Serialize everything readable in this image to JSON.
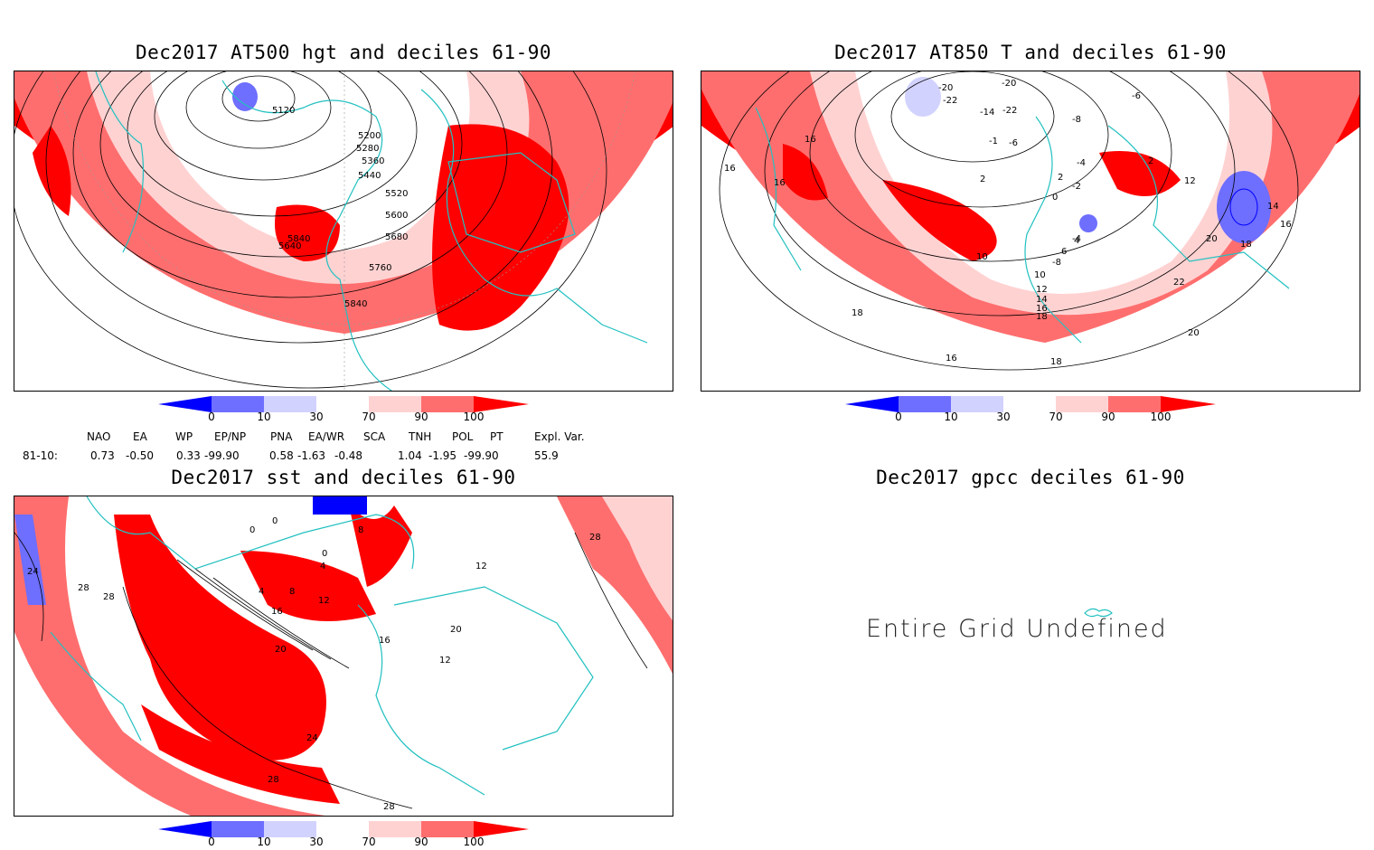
{
  "panels": {
    "hgt": {
      "title": "Dec2017 AT500 hgt and deciles 61-90",
      "contour_labels": [
        "5120",
        "5200",
        "5280",
        "5360",
        "5440",
        "5520",
        "5600",
        "5680",
        "5760",
        "5840",
        "5840",
        "5640"
      ]
    },
    "t850": {
      "title": "Dec2017 AT850 T and deciles 61-90",
      "contour_labels": [
        "-20",
        "-22",
        "-20",
        "-6",
        "-14",
        "-22",
        "-8",
        "-1",
        "-6",
        "2",
        "-4",
        "2",
        "16",
        "16",
        "16",
        "2",
        "0",
        "-2",
        "12",
        "14",
        "16",
        "-4",
        "4",
        "6",
        "-8",
        "10",
        "10",
        "12",
        "14",
        "16",
        "18",
        "20",
        "18",
        "22",
        "20",
        "18",
        "16",
        "18"
      ]
    },
    "sst": {
      "title": "Dec2017 sst and deciles 61-90",
      "contour_labels": [
        "0",
        "0",
        "0",
        "4",
        "4",
        "8",
        "12",
        "16",
        "20",
        "24",
        "28",
        "28",
        "24",
        "28",
        "28",
        "16",
        "20",
        "8",
        "12",
        "28",
        "12"
      ]
    },
    "gpcc": {
      "title": "Dec2017 gpcc deciles 61-90",
      "message": "Entire Grid Undefined"
    }
  },
  "colorbar": {
    "ticks": [
      "0",
      "10",
      "30",
      "70",
      "90",
      "100"
    ],
    "colors": [
      "#0000ff",
      "#6e6eff",
      "#d2d2ff",
      "#ffffff",
      "#ffd2d2",
      "#ff6e6e",
      "#ff0000"
    ]
  },
  "indices": {
    "headers": [
      "NAO",
      "EA",
      "WP",
      "EP/NP",
      "PNA",
      "EA/WR",
      "SCA",
      "TNH",
      "POL",
      "PT",
      "Expl. Var."
    ],
    "row_label": "81-10:",
    "values": [
      "0.73",
      "-0.50",
      "0.33",
      "-99.90",
      "0.58",
      "-1.63",
      "-0.48",
      "1.04",
      "-1.95",
      "-99.90",
      "55.9"
    ]
  }
}
